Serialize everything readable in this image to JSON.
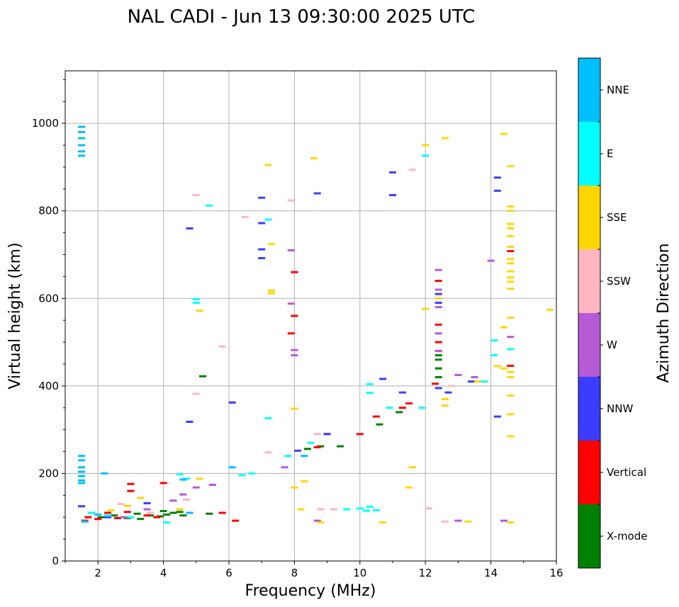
{
  "chart_data": {
    "type": "scatter",
    "title": "NAL CADI - Jun 13 09:30:00 2025 UTC",
    "xlabel": "Frequency (MHz)",
    "ylabel": "Virtual height (km)",
    "xlim": [
      1,
      16
    ],
    "ylim": [
      0,
      1120
    ],
    "xticks": [
      2,
      4,
      6,
      8,
      10,
      12,
      14,
      16
    ],
    "yticks": [
      0,
      200,
      400,
      600,
      800,
      1000
    ],
    "grid": true,
    "colorbar": {
      "title": "Azimuth Direction",
      "categories": [
        {
          "name": "X-mode",
          "color": "#008000"
        },
        {
          "name": "Vertical",
          "color": "#ff0000"
        },
        {
          "name": "NNW",
          "color": "#3c3cff"
        },
        {
          "name": "W",
          "color": "#b65ad6"
        },
        {
          "name": "SSW",
          "color": "#ffb6c1"
        },
        {
          "name": "SSE",
          "color": "#ffd700"
        },
        {
          "name": "E",
          "color": "#00ffff"
        },
        {
          "name": "NNE",
          "color": "#00bfff"
        }
      ]
    },
    "series": [
      {
        "name": "X-mode",
        "points": [
          [
            2.1,
            100
          ],
          [
            2.5,
            104
          ],
          [
            3.2,
            108
          ],
          [
            3.6,
            104
          ],
          [
            3.9,
            102
          ],
          [
            4.1,
            106
          ],
          [
            4.3,
            110
          ],
          [
            4.6,
            104
          ],
          [
            5.2,
            422
          ],
          [
            5.4,
            108
          ],
          [
            8.4,
            256
          ],
          [
            8.8,
            262
          ],
          [
            9.4,
            262
          ],
          [
            10.6,
            312
          ],
          [
            11.2,
            340
          ],
          [
            12.4,
            480
          ],
          [
            12.4,
            470
          ],
          [
            12.4,
            460
          ],
          [
            12.4,
            440
          ],
          [
            12.4,
            420
          ],
          [
            2.9,
            98
          ],
          [
            3.3,
            96
          ],
          [
            4.0,
            114
          ],
          [
            4.5,
            112
          ]
        ]
      },
      {
        "name": "Vertical",
        "points": [
          [
            1.6,
            92
          ],
          [
            1.7,
            100
          ],
          [
            2.0,
            96
          ],
          [
            2.3,
            110
          ],
          [
            2.6,
            98
          ],
          [
            2.9,
            112
          ],
          [
            3.0,
            160
          ],
          [
            3.0,
            176
          ],
          [
            3.5,
            104
          ],
          [
            3.8,
            100
          ],
          [
            4.0,
            178
          ],
          [
            5.8,
            110
          ],
          [
            6.2,
            92
          ],
          [
            7.9,
            520
          ],
          [
            8.0,
            560
          ],
          [
            8.0,
            660
          ],
          [
            10.0,
            290
          ],
          [
            10.5,
            330
          ],
          [
            11.3,
            350
          ],
          [
            11.5,
            360
          ],
          [
            12.3,
            405
          ],
          [
            12.4,
            640
          ],
          [
            12.4,
            540
          ],
          [
            12.4,
            500
          ],
          [
            14.6,
            446
          ],
          [
            14.6,
            708
          ],
          [
            9.0,
            290
          ],
          [
            8.7,
            260
          ]
        ]
      },
      {
        "name": "NNW",
        "points": [
          [
            1.5,
            125
          ],
          [
            1.8,
            110
          ],
          [
            2.3,
            100
          ],
          [
            3.5,
            132
          ],
          [
            4.8,
            760
          ],
          [
            4.8,
            318
          ],
          [
            6.1,
            362
          ],
          [
            7.0,
            692
          ],
          [
            7.0,
            712
          ],
          [
            7.0,
            772
          ],
          [
            7.0,
            830
          ],
          [
            8.7,
            840
          ],
          [
            8.1,
            252
          ],
          [
            9.0,
            290
          ],
          [
            10.7,
            416
          ],
          [
            11.0,
            888
          ],
          [
            11.0,
            836
          ],
          [
            12.4,
            610
          ],
          [
            12.4,
            590
          ],
          [
            12.4,
            395
          ],
          [
            12.7,
            385
          ],
          [
            13.4,
            410
          ],
          [
            14.2,
            876
          ],
          [
            14.2,
            846
          ],
          [
            14.2,
            330
          ],
          [
            11.3,
            385
          ]
        ]
      },
      {
        "name": "W",
        "points": [
          [
            2.8,
            100
          ],
          [
            3.5,
            118
          ],
          [
            4.3,
            138
          ],
          [
            4.6,
            152
          ],
          [
            5.0,
            168
          ],
          [
            5.5,
            174
          ],
          [
            7.7,
            214
          ],
          [
            7.9,
            710
          ],
          [
            7.9,
            588
          ],
          [
            8.0,
            470
          ],
          [
            8.0,
            482
          ],
          [
            12.4,
            665
          ],
          [
            12.4,
            620
          ],
          [
            12.4,
            580
          ],
          [
            12.4,
            520
          ],
          [
            12.4,
            480
          ],
          [
            13.0,
            425
          ],
          [
            13.5,
            420
          ],
          [
            14.0,
            686
          ],
          [
            14.6,
            512
          ],
          [
            8.7,
            92
          ],
          [
            13.0,
            92
          ],
          [
            14.4,
            92
          ]
        ]
      },
      {
        "name": "SSW",
        "points": [
          [
            2.7,
            130
          ],
          [
            3.6,
            110
          ],
          [
            4.7,
            140
          ],
          [
            5.0,
            836
          ],
          [
            5.0,
            382
          ],
          [
            5.8,
            490
          ],
          [
            6.5,
            786
          ],
          [
            7.2,
            248
          ],
          [
            7.9,
            824
          ],
          [
            8.7,
            290
          ],
          [
            11.6,
            894
          ],
          [
            12.1,
            120
          ],
          [
            12.6,
            90
          ],
          [
            12.8,
            400
          ],
          [
            8.8,
            118
          ],
          [
            9.2,
            118
          ]
        ]
      },
      {
        "name": "SSE",
        "points": [
          [
            2.4,
            116
          ],
          [
            2.9,
            126
          ],
          [
            3.3,
            144
          ],
          [
            4.5,
            118
          ],
          [
            5.1,
            188
          ],
          [
            5.1,
            572
          ],
          [
            7.2,
            905
          ],
          [
            7.3,
            724
          ],
          [
            7.3,
            612
          ],
          [
            7.3,
            618
          ],
          [
            8.0,
            168
          ],
          [
            8.0,
            348
          ],
          [
            8.2,
            118
          ],
          [
            8.3,
            182
          ],
          [
            8.6,
            920
          ],
          [
            8.8,
            88
          ],
          [
            10.7,
            88
          ],
          [
            11.5,
            168
          ],
          [
            11.6,
            214
          ],
          [
            12.0,
            576
          ],
          [
            12.0,
            950
          ],
          [
            12.6,
            966
          ],
          [
            12.6,
            355
          ],
          [
            12.6,
            370
          ],
          [
            13.3,
            90
          ],
          [
            13.6,
            410
          ],
          [
            14.2,
            445
          ],
          [
            14.4,
            976
          ],
          [
            14.4,
            534
          ],
          [
            14.4,
            440
          ],
          [
            14.6,
            902
          ],
          [
            14.6,
            810
          ],
          [
            14.6,
            800
          ],
          [
            14.6,
            770
          ],
          [
            14.6,
            760
          ],
          [
            14.6,
            742
          ],
          [
            14.6,
            718
          ],
          [
            14.6,
            690
          ],
          [
            14.6,
            680
          ],
          [
            14.6,
            662
          ],
          [
            14.6,
            648
          ],
          [
            14.6,
            638
          ],
          [
            14.6,
            622
          ],
          [
            14.6,
            556
          ],
          [
            14.6,
            432
          ],
          [
            14.6,
            420
          ],
          [
            14.6,
            378
          ],
          [
            14.6,
            335
          ],
          [
            14.6,
            285
          ],
          [
            14.6,
            88
          ],
          [
            15.8,
            574
          ],
          [
            12.4,
            600
          ]
        ]
      },
      {
        "name": "E",
        "points": [
          [
            1.8,
            110
          ],
          [
            2.3,
            104
          ],
          [
            3.0,
            100
          ],
          [
            4.1,
            88
          ],
          [
            4.5,
            198
          ],
          [
            4.7,
            188
          ],
          [
            5.0,
            598
          ],
          [
            5.0,
            590
          ],
          [
            5.4,
            812
          ],
          [
            6.4,
            196
          ],
          [
            6.7,
            200
          ],
          [
            7.2,
            780
          ],
          [
            7.2,
            326
          ],
          [
            7.8,
            240
          ],
          [
            8.5,
            270
          ],
          [
            9.6,
            118
          ],
          [
            10.0,
            120
          ],
          [
            10.2,
            115
          ],
          [
            10.3,
            124
          ],
          [
            10.5,
            116
          ],
          [
            10.3,
            404
          ],
          [
            10.3,
            384
          ],
          [
            11.9,
            350
          ],
          [
            12.0,
            926
          ],
          [
            14.1,
            504
          ],
          [
            14.1,
            470
          ],
          [
            14.6,
            484
          ],
          [
            13.8,
            410
          ],
          [
            10.9,
            350
          ]
        ]
      },
      {
        "name": "NNE",
        "points": [
          [
            1.5,
            992
          ],
          [
            1.5,
            980
          ],
          [
            1.5,
            966
          ],
          [
            1.5,
            950
          ],
          [
            1.5,
            936
          ],
          [
            1.5,
            926
          ],
          [
            1.5,
            240
          ],
          [
            1.5,
            230
          ],
          [
            1.5,
            214
          ],
          [
            1.5,
            204
          ],
          [
            1.5,
            194
          ],
          [
            1.5,
            184
          ],
          [
            1.5,
            178
          ],
          [
            1.6,
            90
          ],
          [
            2.0,
            106
          ],
          [
            2.2,
            200
          ],
          [
            4.6,
            186
          ],
          [
            4.8,
            110
          ],
          [
            6.1,
            214
          ],
          [
            8.3,
            240
          ]
        ]
      }
    ]
  }
}
